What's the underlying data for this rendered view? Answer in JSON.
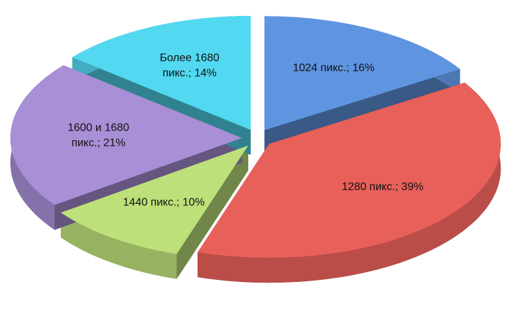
{
  "chart_data": {
    "type": "pie",
    "values": [
      16,
      39,
      10,
      21,
      14
    ],
    "value_labels": [
      "1024 пикс.; 16%",
      "1280 пикс.; 39%",
      "1440 пикс.; 10%",
      "1600 и 1680 пикс.; 21%",
      "Более 1680 пикс.; 14%"
    ],
    "colors": [
      "#5f95e0",
      "#e8605a",
      "#bde07a",
      "#a88fd6",
      "#52d8f0"
    ]
  }
}
